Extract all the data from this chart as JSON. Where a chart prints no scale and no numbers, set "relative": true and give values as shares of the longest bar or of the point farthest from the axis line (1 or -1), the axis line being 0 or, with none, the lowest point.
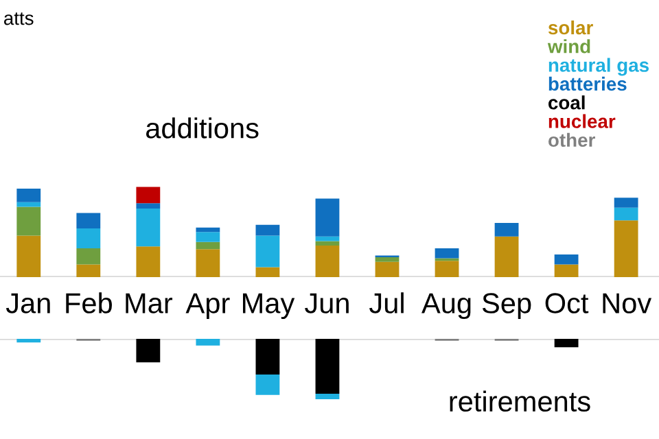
{
  "chart_data": [
    {
      "type": "bar",
      "stacked": true,
      "relative": true,
      "subtitle": "atts",
      "annotations": [
        "additions"
      ],
      "legend": "top right",
      "categories": [
        "Jan",
        "Feb",
        "Mar",
        "Apr",
        "May",
        "Jun",
        "Jul",
        "Aug",
        "Sep",
        "Oct",
        "Nov"
      ],
      "series": [
        {
          "name": "solar",
          "color": "#c0900f",
          "values": [
            0.46,
            0.14,
            0.34,
            0.31,
            0.11,
            0.35,
            0.17,
            0.18,
            0.45,
            0.14,
            0.63
          ]
        },
        {
          "name": "wind",
          "color": "#6f9f3f",
          "values": [
            0.32,
            0.18,
            null,
            0.08,
            null,
            0.05,
            0.05,
            0.03,
            null,
            null,
            null
          ]
        },
        {
          "name": "natural gas",
          "color": "#1fb0e0",
          "values": [
            0.05,
            0.22,
            0.42,
            0.11,
            0.35,
            0.05,
            null,
            null,
            null,
            null,
            0.14
          ]
        },
        {
          "name": "batteries",
          "color": "#1070c0",
          "values": [
            0.15,
            0.17,
            0.06,
            0.05,
            0.12,
            0.42,
            0.02,
            0.11,
            0.15,
            0.11,
            0.11
          ]
        },
        {
          "name": "coal",
          "color": "#000000",
          "values": [
            null,
            null,
            null,
            null,
            null,
            null,
            null,
            null,
            null,
            null,
            null
          ]
        },
        {
          "name": "nuclear",
          "color": "#c00000",
          "values": [
            null,
            null,
            0.18,
            null,
            null,
            null,
            null,
            null,
            null,
            null,
            null
          ]
        },
        {
          "name": "other",
          "color": "#808080",
          "values": [
            null,
            null,
            null,
            null,
            null,
            null,
            null,
            null,
            null,
            null,
            null
          ]
        }
      ]
    },
    {
      "type": "bar",
      "stacked": true,
      "relative": true,
      "annotations": [
        "retirements"
      ],
      "categories": [
        null,
        null,
        null,
        null,
        null,
        null,
        null,
        null,
        null,
        null,
        null
      ],
      "series": [
        {
          "color": "#000000",
          "values": [
            null,
            null,
            -0.39,
            null,
            -0.59,
            -0.91,
            null,
            null,
            null,
            -0.14,
            null
          ]
        },
        {
          "color": "#1fb0e0",
          "values": [
            -0.06,
            null,
            null,
            -0.11,
            -0.34,
            -0.09,
            null,
            null,
            null,
            null,
            null
          ]
        },
        {
          "color": "#808080",
          "values": [
            null,
            -0.03,
            null,
            null,
            null,
            null,
            null,
            -0.03,
            -0.03,
            null,
            null
          ]
        }
      ]
    }
  ]
}
